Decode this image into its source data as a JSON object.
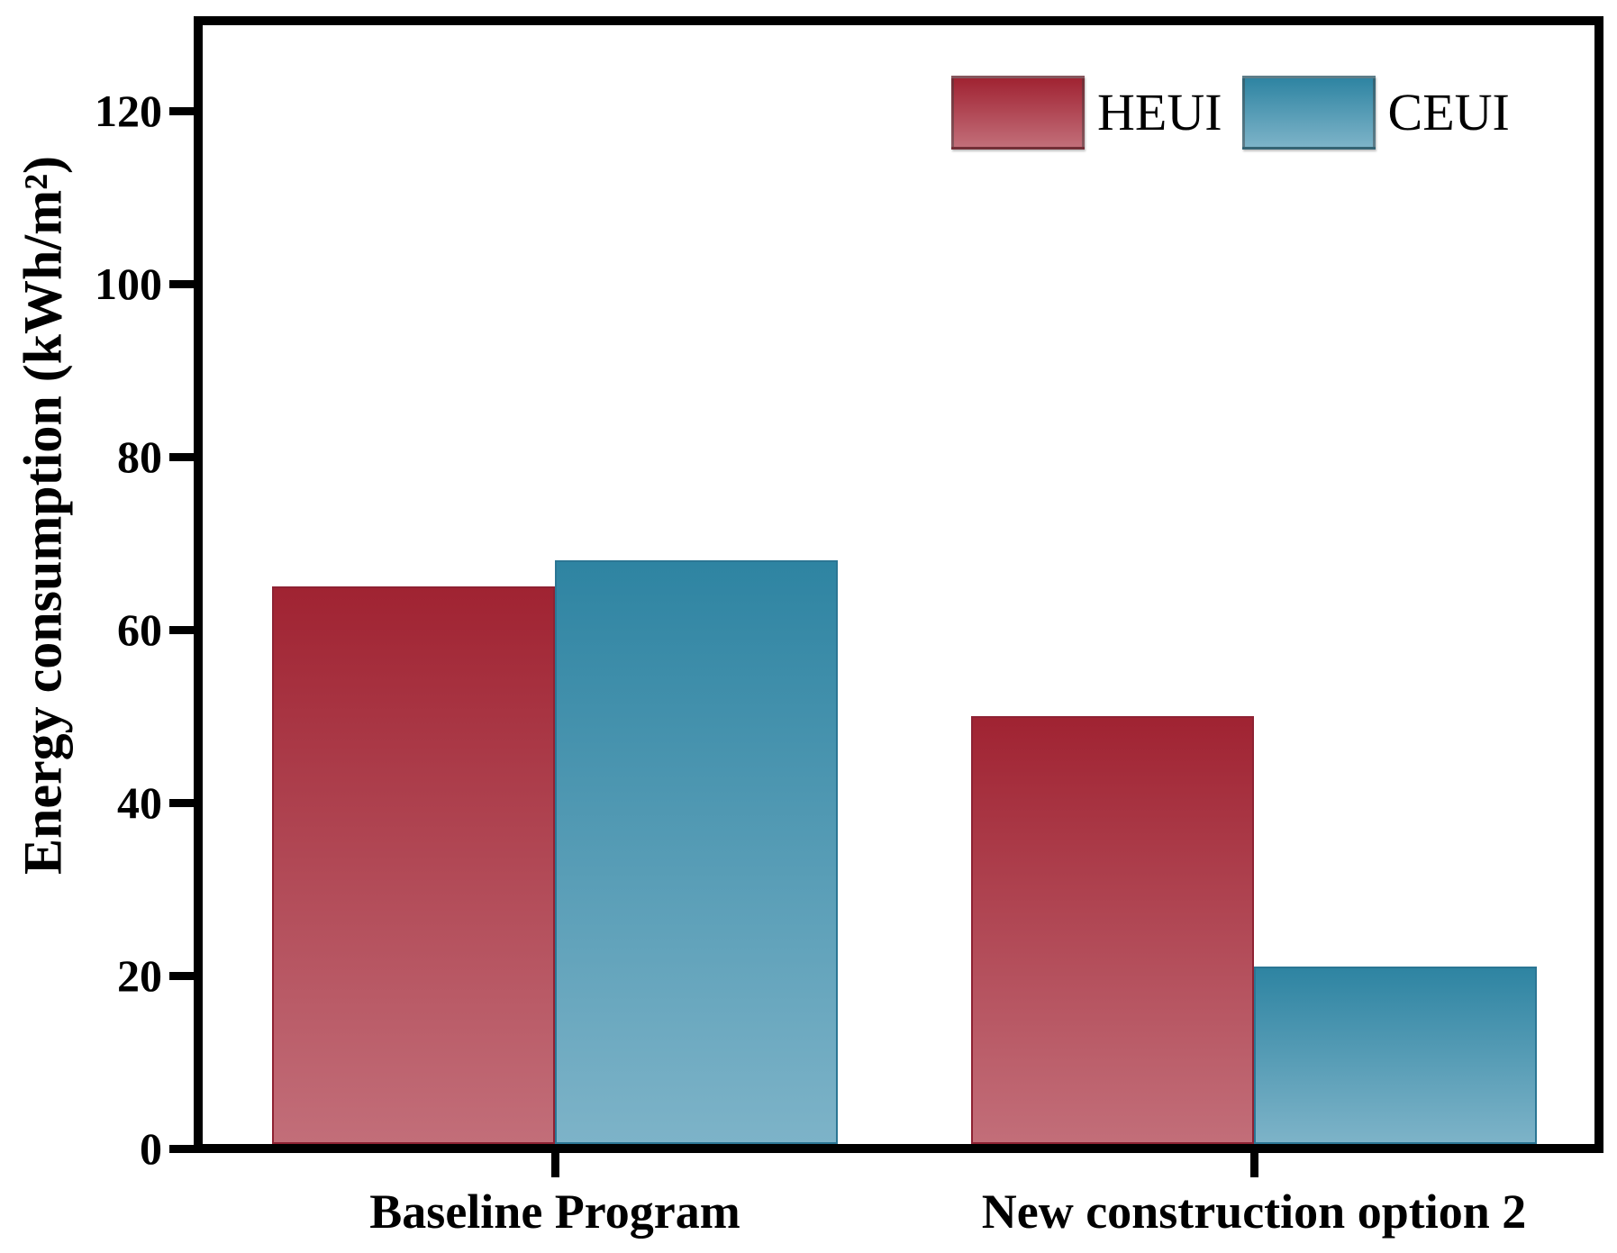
{
  "chart_data": {
    "type": "bar",
    "title": "",
    "categories": [
      "Baseline Program",
      "New construction option 2"
    ],
    "series": [
      {
        "name": "HEUI",
        "values": [
          65,
          50
        ],
        "color_top": "#A02332",
        "color_bottom": "#C26E79",
        "border_color": "#8E2233"
      },
      {
        "name": "CEUI",
        "values": [
          68,
          21
        ],
        "color_top": "#2E84A2",
        "color_bottom": "#7DB3C8",
        "border_color": "#2B7694"
      }
    ],
    "xlabel": "",
    "ylabel": "Energy consumption (kWh/m²)",
    "ylim": [
      0,
      130
    ],
    "yticks": [
      0,
      20,
      40,
      60,
      80,
      100,
      120
    ],
    "grid": false,
    "legend": {
      "position": "top-right",
      "entries": [
        "HEUI",
        "CEUI"
      ]
    },
    "axis_color": "#000000",
    "background_color": "#FFFFFF"
  }
}
